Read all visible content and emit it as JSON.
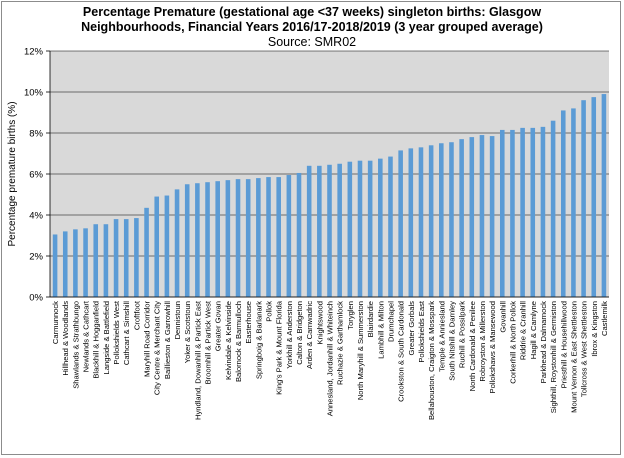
{
  "chart_data": {
    "type": "bar",
    "title_line1": "Percentage Premature (gestational age <37 weeks) singleton births: Glasgow",
    "title_line2": "Neighbourhoods,   Financial Years 2016/17-2018/2019  (3 year grouped average)",
    "subtitle": "Source:  SMR02",
    "xlabel": "",
    "ylabel": "Percentage premature births (%)",
    "ylim": [
      0,
      12
    ],
    "yticks": [
      "0%",
      "2%",
      "4%",
      "6%",
      "8%",
      "10%",
      "12%"
    ],
    "grid": true,
    "bar_color": "#5b9bd5",
    "plot_background": "#d9d9d9",
    "categories": [
      "Carmunnock",
      "Hillhead & Woodlands",
      "Shawlands & Strathbungo",
      "Newlands & Cathcart",
      "Blackhill & Hogganfield",
      "Langside & Battlefield",
      "Pollokshields West",
      "Cathcart & Simshill",
      "Croftfoot",
      "Maryhill Road Corridor",
      "City Centre & Merchant City",
      "Baillieston & Garrowhill",
      "Dennistoun",
      "Yoker & Scotstoun",
      "Hyndland, Dowanhill & Partick East",
      "Broomhill & Partick West",
      "Greater Govan",
      "Kelvindale & Kelvinside",
      "Balornock & Barmulloch",
      "Easterhouse",
      "Springboig & Barlanark",
      "Pollok",
      "King's Park & Mount Florida",
      "Yorkhill & Anderston",
      "Calton & Bridgeton",
      "Arden & Carnwadric",
      "Knightswood",
      "Annesland, Jordanhill & Whiteinch",
      "Ruchazie & Garthamlock",
      "Toryglen",
      "North Maryhill & Summerston",
      "Blairdardie",
      "Lambhill & Milton",
      "Drumchapel",
      "Crookston & South Cardonald",
      "Greater Gorbals",
      "Pollokshields East",
      "Bellahouston, Craigton & Mosspark",
      "Temple & Anniesland",
      "South Nitshill & Darnley",
      "Ruchill & Possilpark",
      "North Cardonald & Penilee",
      "Robroyston & Millerston",
      "Pollokshaws & Mansewood",
      "Govanhill",
      "Corkerhill & North Pollok",
      "Riddrie & Cranhill",
      "Hagill & Camlyne",
      "Parkhead & Dalmarnock",
      "Sighthill, Roystonhill & Germiston",
      "Priesthill & Househillwood",
      "Mount Vernon & East Shettleston",
      "Tollcross & West Shettleston",
      "Ibrox & Kingston",
      "Castlemilk"
    ],
    "values": [
      3.05,
      3.2,
      3.3,
      3.35,
      3.55,
      3.55,
      3.8,
      3.8,
      3.85,
      4.35,
      4.9,
      4.95,
      5.25,
      5.5,
      5.55,
      5.6,
      5.65,
      5.7,
      5.75,
      5.75,
      5.8,
      5.85,
      5.85,
      5.95,
      6.05,
      6.4,
      6.4,
      6.45,
      6.5,
      6.6,
      6.65,
      6.65,
      6.75,
      6.85,
      7.15,
      7.25,
      7.3,
      7.4,
      7.5,
      7.55,
      7.7,
      7.8,
      7.9,
      7.85,
      8.15,
      8.15,
      8.25,
      8.25,
      8.3,
      8.6,
      9.1,
      9.2,
      9.6,
      9.75,
      9.9
    ]
  }
}
